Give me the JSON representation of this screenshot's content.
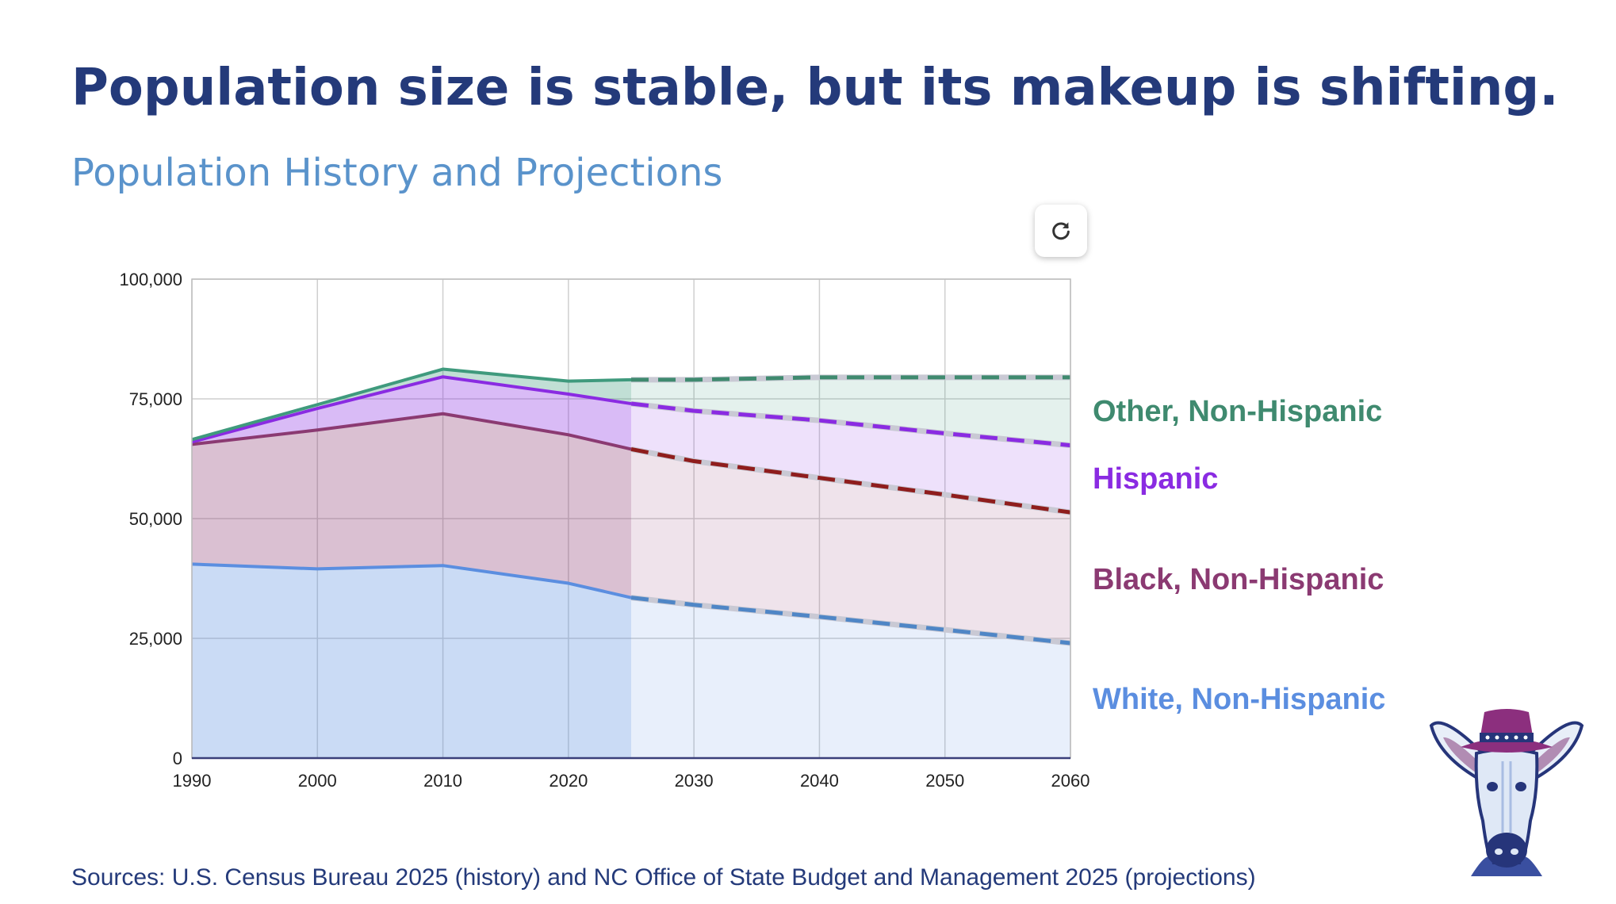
{
  "header": {
    "headline": "Population size is stable, but its makeup is shifting.",
    "subtitle": "Population History and Projections"
  },
  "toolbar": {
    "refresh_icon": "refresh-icon"
  },
  "chart_data": {
    "type": "area",
    "stacked": true,
    "x": [
      1990,
      2000,
      2010,
      2020,
      2025,
      2030,
      2040,
      2050,
      2060
    ],
    "projection_start": 2025,
    "xticks": [
      "1990",
      "2000",
      "2010",
      "2020",
      "2030",
      "2040",
      "2050",
      "2060"
    ],
    "yticks": [
      "0",
      "25,000",
      "50,000",
      "75,000",
      "100,000"
    ],
    "ylim": [
      0,
      100000
    ],
    "xlim": [
      1990,
      2060
    ],
    "grid": true,
    "legend_position": "right",
    "series": [
      {
        "name": "White, Non-Hispanic",
        "color": "#5b8ee0",
        "values": [
          40500,
          39500,
          40200,
          36500,
          33500,
          32000,
          29500,
          26800,
          24000
        ]
      },
      {
        "name": "Black, Non-Hispanic",
        "color": "#8b3a72",
        "values": [
          25000,
          29000,
          31700,
          31000,
          31000,
          30000,
          29000,
          28200,
          27300
        ]
      },
      {
        "name": "Hispanic",
        "color": "#8a2be2",
        "values": [
          500,
          4500,
          7700,
          8500,
          9500,
          10500,
          12000,
          12800,
          14000
        ]
      },
      {
        "name": "Other, Non-Hispanic",
        "color": "#3f9a7d",
        "values": [
          500,
          800,
          1600,
          2700,
          5000,
          6500,
          9000,
          11700,
          14200
        ]
      }
    ]
  },
  "source": "Sources: U.S. Census Bureau 2025 (history) and NC Office of State Budget and Management 2025 (projections)"
}
